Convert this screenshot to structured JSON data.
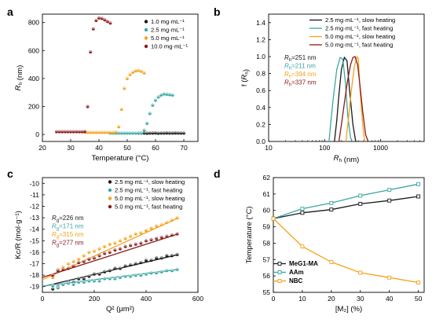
{
  "chart_data": [
    {
      "panel": "a",
      "type": "scatter",
      "xlabel": "Temperature (°C)",
      "ylabel": "R_h (nm)",
      "xlim": [
        20,
        75
      ],
      "ylim": [
        -50,
        860
      ],
      "xticks": [
        20,
        30,
        40,
        50,
        60,
        70
      ],
      "yticks": [
        0,
        200,
        400,
        600,
        800
      ],
      "legend_position": "top-right",
      "series": [
        {
          "name": "1.0 mg·mL⁻¹",
          "color": "#1a1a1a",
          "x": [
            54,
            55,
            56,
            57,
            58,
            59,
            60,
            61,
            62,
            63,
            64,
            65,
            66,
            67,
            68,
            69,
            70
          ],
          "y": [
            10,
            10,
            10,
            9,
            10,
            10,
            11,
            9,
            10,
            10,
            11,
            10,
            10,
            11,
            10,
            10,
            10
          ]
        },
        {
          "name": "2.5 mg·mL⁻¹",
          "color": "#3aa6a3",
          "x": [
            44,
            45,
            46,
            47,
            48,
            49,
            50,
            51,
            52,
            53,
            54,
            55,
            56,
            57,
            58,
            59,
            60,
            61,
            62,
            63,
            64,
            65,
            66
          ],
          "y": [
            10,
            10,
            10,
            10,
            10,
            10,
            10,
            10,
            10,
            10,
            10,
            10,
            30,
            80,
            150,
            210,
            245,
            268,
            282,
            290,
            288,
            285,
            282
          ]
        },
        {
          "name": "5.0 mg·mL⁻¹",
          "color": "#f5a21b",
          "x": [
            35,
            36,
            37,
            38,
            39,
            40,
            41,
            42,
            43,
            44,
            45,
            46,
            47,
            48,
            49,
            50,
            51,
            52,
            53,
            54,
            55,
            56
          ],
          "y": [
            15,
            15,
            15,
            15,
            15,
            15,
            15,
            15,
            15,
            15,
            15,
            18,
            55,
            180,
            330,
            400,
            428,
            445,
            455,
            458,
            452,
            440
          ]
        },
        {
          "name": "10.0 mg·mL⁻¹",
          "color": "#8b1a1a",
          "x": [
            25,
            26,
            27,
            28,
            29,
            30,
            31,
            32,
            33,
            34,
            35,
            36,
            37,
            38,
            39,
            40,
            41,
            42,
            43,
            44
          ],
          "y": [
            20,
            20,
            20,
            20,
            20,
            20,
            20,
            20,
            20,
            20,
            22,
            200,
            590,
            755,
            815,
            833,
            830,
            820,
            808,
            797
          ]
        }
      ]
    },
    {
      "panel": "b",
      "type": "line",
      "xlabel": "R_h (nm)",
      "ylabel": "f (R_h)",
      "xscale": "log",
      "xlim": [
        10,
        6000
      ],
      "ylim": [
        0,
        1.5
      ],
      "xticks": [
        10,
        100,
        1000
      ],
      "yticks": [
        0.0,
        0.2,
        0.4,
        0.6,
        0.8,
        1.0,
        1.2,
        1.4
      ],
      "legend_position": "top-right",
      "annotations": [
        {
          "label": "R",
          "sub": "h",
          "value": "=251 nm",
          "color": "#1a1a1a"
        },
        {
          "label": "R",
          "sub": "h",
          "value": "=211 nm",
          "color": "#3aa6a3"
        },
        {
          "label": "R",
          "sub": "h",
          "value": "=394 nm",
          "color": "#f5a21b"
        },
        {
          "label": "R",
          "sub": "h",
          "value": "=337 nm",
          "color": "#8b1a1a"
        }
      ],
      "series": [
        {
          "name": "2.5 mg·mL⁻¹, slow heating",
          "color": "#1a1a1a",
          "x": [
            150,
            165,
            180,
            200,
            225,
            251,
            280,
            320,
            360
          ],
          "y": [
            0,
            0.25,
            0.55,
            0.85,
            0.99,
            0.95,
            0.6,
            0.2,
            0
          ]
        },
        {
          "name": "2.5 mg·mL⁻¹, fast heating",
          "color": "#3aa6a3",
          "x": [
            120,
            130,
            145,
            165,
            190,
            211,
            235,
            260,
            290,
            310
          ],
          "y": [
            0,
            0.25,
            0.55,
            0.85,
            0.99,
            0.97,
            0.7,
            0.3,
            0.05,
            0
          ]
        },
        {
          "name": "5.0 mg·mL⁻¹, slow heating",
          "color": "#f5a21b",
          "x": [
            240,
            270,
            300,
            340,
            380,
            400,
            430,
            480,
            520
          ],
          "y": [
            0,
            0.3,
            0.6,
            0.88,
            1.0,
            0.97,
            0.6,
            0.2,
            0
          ]
        },
        {
          "name": "5.0 mg·mL⁻¹, fast heating",
          "color": "#8b1a1a",
          "x": [
            180,
            200,
            225,
            255,
            290,
            320,
            350,
            390,
            430,
            480,
            540,
            600
          ],
          "y": [
            0,
            0.2,
            0.45,
            0.7,
            0.9,
            0.99,
            1.0,
            0.9,
            0.65,
            0.35,
            0.08,
            0
          ]
        }
      ]
    },
    {
      "panel": "c",
      "type": "scatter",
      "xlabel": "Q² (μm²)",
      "ylabel": "Kc/R (mol·g⁻¹)",
      "xlim": [
        0,
        600
      ],
      "ylim": [
        -19.5,
        -9.5
      ],
      "xticks": [
        0,
        200,
        400,
        600
      ],
      "yticks": [
        -10,
        -11,
        -12,
        -13,
        -14,
        -15,
        -16,
        -17,
        -18,
        -19
      ],
      "legend_position": "top-right",
      "annotations": [
        {
          "label": "R",
          "sub": "g",
          "value": "=226 nm",
          "color": "#1a1a1a"
        },
        {
          "label": "R",
          "sub": "g",
          "value": "=171 nm",
          "color": "#3aa6a3"
        },
        {
          "label": "R",
          "sub": "g",
          "value": "=315 nm",
          "color": "#f5a21b"
        },
        {
          "label": "R",
          "sub": "g",
          "value": "=277 nm",
          "color": "#8b1a1a"
        }
      ],
      "series": [
        {
          "name": "2.5 mg·mL⁻¹, slow heating",
          "color": "#1a1a1a",
          "x": [
            40,
            60,
            80,
            100,
            120,
            140,
            160,
            180,
            200,
            220,
            240,
            260,
            280,
            300,
            320,
            340,
            360,
            380,
            400,
            420,
            440,
            460,
            480,
            500,
            520
          ],
          "y": [
            -19.2,
            -19.0,
            -18.8,
            -18.6,
            -18.6,
            -18.3,
            -18.3,
            -18.1,
            -17.9,
            -17.9,
            -17.7,
            -17.6,
            -17.4,
            -17.4,
            -17.2,
            -17.1,
            -17.0,
            -16.9,
            -16.7,
            -16.7,
            -16.5,
            -16.5,
            -16.3,
            -16.3,
            -16.2
          ],
          "fit": [
            [
              0,
              -19.0
            ],
            [
              525,
              -16.2
            ]
          ]
        },
        {
          "name": "2.5 mg·mL⁻¹, fast heating",
          "color": "#3aa6a3",
          "x": [
            40,
            60,
            80,
            100,
            120,
            140,
            160,
            180,
            200,
            220,
            240,
            260,
            280,
            300,
            320,
            340,
            360,
            380,
            400,
            420,
            440,
            460,
            480,
            500,
            520
          ],
          "y": [
            -18.9,
            -19.1,
            -18.8,
            -18.7,
            -18.8,
            -18.6,
            -18.6,
            -18.5,
            -18.5,
            -18.5,
            -18.3,
            -18.3,
            -18.3,
            -18.2,
            -18.1,
            -18.1,
            -18.0,
            -18.0,
            -17.9,
            -17.8,
            -17.8,
            -17.7,
            -17.6,
            -17.6,
            -17.5
          ],
          "fit": [
            [
              0,
              -18.95
            ],
            [
              525,
              -17.5
            ]
          ]
        },
        {
          "name": "5.0 mg·mL⁻¹, slow heating",
          "color": "#f5a21b",
          "x": [
            40,
            60,
            80,
            100,
            120,
            140,
            160,
            180,
            200,
            220,
            240,
            260,
            280,
            300,
            320,
            340,
            360,
            380,
            400,
            420,
            440,
            460,
            480,
            500,
            520
          ],
          "y": [
            -18.2,
            -17.5,
            -17.3,
            -17.0,
            -16.8,
            -16.6,
            -16.3,
            -16.0,
            -15.9,
            -15.7,
            -15.5,
            -15.3,
            -15.2,
            -15.0,
            -14.8,
            -14.6,
            -14.4,
            -14.3,
            -14.1,
            -13.9,
            -13.7,
            -13.6,
            -13.4,
            -13.2,
            -13.0
          ],
          "fit": [
            [
              0,
              -18.4
            ],
            [
              525,
              -13.0
            ]
          ]
        },
        {
          "name": "5.0 mg·mL⁻¹, fast heating",
          "color": "#8b1a1a",
          "x": [
            40,
            60,
            80,
            100,
            120,
            140,
            160,
            180,
            200,
            220,
            240,
            260,
            280,
            300,
            320,
            340,
            360,
            380,
            400,
            420,
            440,
            460,
            480,
            500,
            520
          ],
          "y": [
            -18.0,
            -17.6,
            -17.5,
            -17.4,
            -17.2,
            -16.9,
            -16.8,
            -16.6,
            -16.5,
            -16.3,
            -16.1,
            -16.0,
            -15.8,
            -15.7,
            -15.5,
            -15.4,
            -15.3,
            -15.2,
            -15.0,
            -14.9,
            -14.8,
            -14.7,
            -14.6,
            -14.5,
            -14.4
          ],
          "fit": [
            [
              0,
              -18.2
            ],
            [
              525,
              -14.4
            ]
          ]
        }
      ]
    },
    {
      "panel": "d",
      "type": "line",
      "xlabel": "[M₂] (%)",
      "ylabel": "Temperature (°C)",
      "xlim": [
        0,
        52
      ],
      "ylim": [
        55,
        62
      ],
      "xticks": [
        0,
        10,
        20,
        30,
        40,
        50
      ],
      "yticks": [
        55,
        56,
        57,
        58,
        59,
        60,
        61,
        62
      ],
      "legend_position": "bottom-left",
      "series": [
        {
          "name": "MeG1-MA",
          "color": "#1a1a1a",
          "x": [
            0,
            10,
            20,
            30,
            40,
            50
          ],
          "y": [
            59.5,
            59.85,
            60.05,
            60.4,
            60.6,
            60.85
          ]
        },
        {
          "name": "AAm",
          "color": "#3aa6a3",
          "x": [
            0,
            10,
            20,
            30,
            40,
            50
          ],
          "y": [
            59.5,
            60.1,
            60.45,
            60.9,
            61.25,
            61.6
          ]
        },
        {
          "name": "NBC",
          "color": "#f5a21b",
          "x": [
            0,
            10,
            20,
            30,
            40,
            50
          ],
          "y": [
            59.5,
            57.8,
            56.85,
            56.2,
            55.9,
            55.6
          ]
        }
      ]
    }
  ],
  "panels": [
    "a",
    "b",
    "c",
    "d"
  ]
}
